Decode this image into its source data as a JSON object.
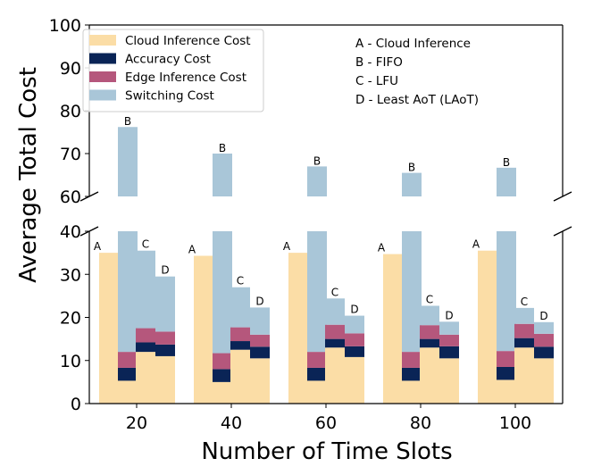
{
  "chart_data": {
    "type": "bar",
    "subtype": "stacked-grouped-broken-axis",
    "xlabel": "Number of Time Slots",
    "ylabel": "Average Total Cost",
    "categories": [
      "20",
      "40",
      "60",
      "80",
      "100"
    ],
    "methods": [
      "A",
      "B",
      "C",
      "D"
    ],
    "components": [
      "Cloud Inference Cost",
      "Accuracy Cost",
      "Edge Inference Cost",
      "Switching Cost"
    ],
    "colors": {
      "Cloud Inference Cost": "#fbdda6",
      "Accuracy Cost": "#0a2456",
      "Edge Inference Cost": "#b5577c",
      "Switching Cost": "#a9c6d8"
    },
    "ylim_lower": [
      0,
      40
    ],
    "ylim_upper": [
      60,
      100
    ],
    "yticks_lower": [
      "0",
      "10",
      "20",
      "30",
      "40"
    ],
    "yticks_upper": [
      "60",
      "70",
      "80",
      "90",
      "100"
    ],
    "annotations": [
      "A - Cloud Inference",
      "B - FIFO",
      "C - LFU",
      "D - Least AoT (LAoT)"
    ],
    "series": [
      {
        "name": "Cloud Inference Cost",
        "values": {
          "A": [
            35.0,
            34.3,
            35.0,
            34.7,
            35.5
          ],
          "B": [
            5.3,
            5.0,
            5.3,
            5.3,
            5.5
          ],
          "C": [
            12.0,
            12.5,
            13.0,
            13.0,
            13.0
          ],
          "D": [
            11.0,
            10.5,
            10.8,
            10.5,
            10.5
          ]
        }
      },
      {
        "name": "Accuracy Cost",
        "values": {
          "A": [
            0,
            0,
            0,
            0,
            0
          ],
          "B": [
            3.0,
            3.0,
            3.0,
            3.0,
            3.0
          ],
          "C": [
            2.2,
            2.0,
            2.0,
            2.0,
            2.2
          ],
          "D": [
            2.7,
            2.7,
            2.5,
            2.8,
            2.7
          ]
        }
      },
      {
        "name": "Edge Inference Cost",
        "values": {
          "A": [
            0,
            0,
            0,
            0,
            0
          ],
          "B": [
            3.7,
            3.7,
            3.7,
            3.7,
            3.7
          ],
          "C": [
            3.3,
            3.2,
            3.3,
            3.2,
            3.3
          ],
          "D": [
            3.0,
            2.8,
            3.0,
            2.7,
            3.0
          ]
        }
      },
      {
        "name": "Switching Cost",
        "values": {
          "A": [
            0,
            0,
            0,
            0,
            0
          ],
          "B": [
            64.2,
            58.3,
            55.0,
            53.5,
            54.5
          ],
          "C": [
            18.0,
            9.3,
            6.1,
            4.5,
            3.7
          ],
          "D": [
            12.8,
            6.3,
            4.1,
            3.0,
            2.7
          ]
        }
      }
    ],
    "totals": {
      "A": [
        35.0,
        34.3,
        35.0,
        34.7,
        35.5
      ],
      "B": [
        76.2,
        70.0,
        67.0,
        65.5,
        66.7
      ],
      "C": [
        35.5,
        27.0,
        24.4,
        22.7,
        22.2
      ],
      "D": [
        29.5,
        22.3,
        20.4,
        19.0,
        18.9
      ]
    },
    "legend_position": "top-left"
  }
}
